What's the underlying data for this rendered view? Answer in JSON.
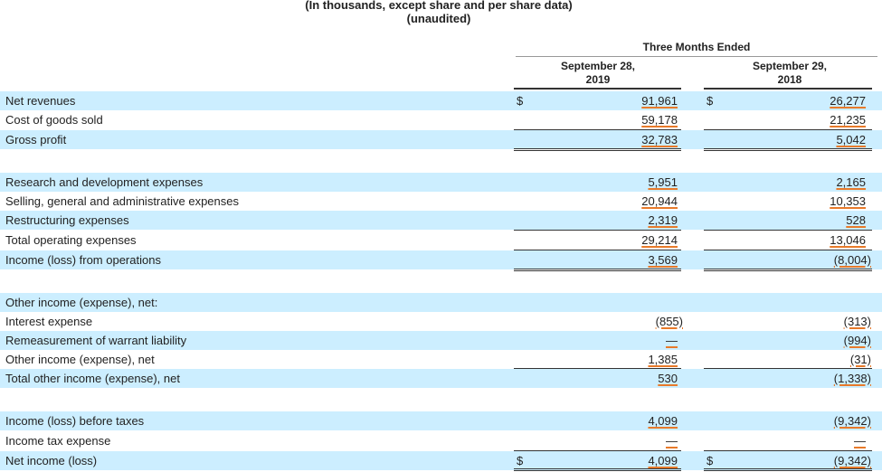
{
  "header": {
    "line1": "(In thousands, except share and per share data)",
    "line2": "(unaudited)",
    "period": "Three Months Ended",
    "col1": [
      "September 28,",
      "2019"
    ],
    "col2": [
      "September 29,",
      "2018"
    ]
  },
  "accent_color": "#e87a2a",
  "shade_color": "#cceeff",
  "rows": [
    {
      "label": "Net revenues",
      "c1": "91,961",
      "c2": "26,277",
      "dollar": true,
      "shade": true
    },
    {
      "label": "Cost of goods sold",
      "c1": "59,178",
      "c2": "21,235",
      "dollar": false,
      "shade": false
    },
    {
      "label": "Gross profit",
      "c1": "32,783",
      "c2": "5,042",
      "dollar": false,
      "shade": true
    },
    {
      "label": "Research and development expenses",
      "c1": "5,951",
      "c2": "2,165",
      "dollar": false,
      "shade": true
    },
    {
      "label": "Selling, general and administrative expenses",
      "c1": "20,944",
      "c2": "10,353",
      "dollar": false,
      "shade": false
    },
    {
      "label": "Restructuring expenses",
      "c1": "2,319",
      "c2": "528",
      "dollar": false,
      "shade": true
    },
    {
      "label": "Total operating expenses",
      "c1": "29,214",
      "c2": "13,046",
      "dollar": false,
      "shade": false
    },
    {
      "label": "Income (loss) from operations",
      "c1": "3,569",
      "c2": "(8,004)",
      "dollar": false,
      "shade": true
    },
    {
      "label": "Other income (expense), net:",
      "c1": "",
      "c2": "",
      "dollar": false,
      "shade": true
    },
    {
      "label": "Interest expense",
      "c1": "(855)",
      "c2": "(313)",
      "dollar": false,
      "shade": false
    },
    {
      "label": "Remeasurement of warrant liability",
      "c1": "—",
      "c2": "(994)",
      "dollar": false,
      "shade": true
    },
    {
      "label": "Other income (expense), net",
      "c1": "1,385",
      "c2": "(31)",
      "dollar": false,
      "shade": false
    },
    {
      "label": "Total other income (expense), net",
      "c1": "530",
      "c2": "(1,338)",
      "dollar": false,
      "shade": true
    },
    {
      "label": "Income (loss) before taxes",
      "c1": "4,099",
      "c2": "(9,342)",
      "dollar": false,
      "shade": true
    },
    {
      "label": "Income tax expense",
      "c1": "—",
      "c2": "—",
      "dollar": false,
      "shade": false
    },
    {
      "label": "Net income (loss)",
      "c1": "4,099",
      "c2": "(9,342)",
      "dollar": true,
      "shade": true
    }
  ],
  "dollar_sign": "$"
}
